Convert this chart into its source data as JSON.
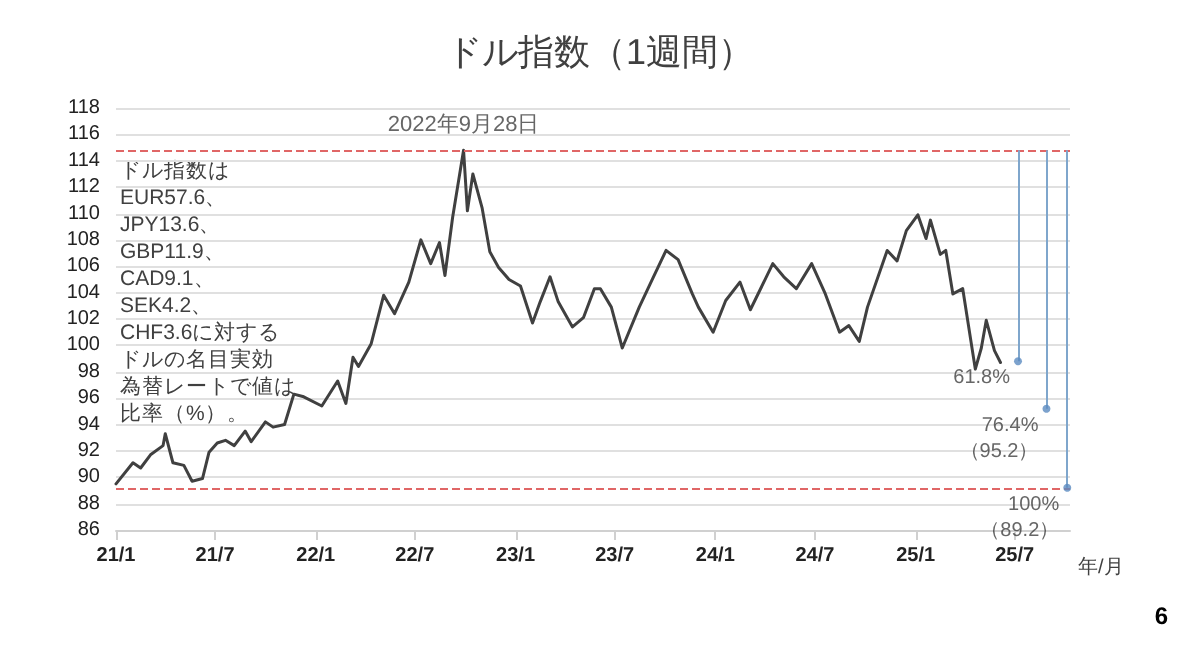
{
  "chart_data": {
    "type": "line",
    "title": "ドル指数（1週間）",
    "xlabel": "年/月",
    "x": [
      "2021-01-01",
      "2021-02-01",
      "2021-02-15",
      "2021-03-05",
      "2021-03-28",
      "2021-04-01",
      "2021-04-15",
      "2021-05-05",
      "2021-05-20",
      "2021-06-08",
      "2021-06-20",
      "2021-07-05",
      "2021-07-20",
      "2021-08-05",
      "2021-08-25",
      "2021-09-05",
      "2021-10-01",
      "2021-10-15",
      "2021-11-05",
      "2021-11-22",
      "2021-12-10",
      "2022-01-12",
      "2022-02-10",
      "2022-02-25",
      "2022-03-10",
      "2022-03-20",
      "2022-04-12",
      "2022-05-05",
      "2022-05-25",
      "2022-06-20",
      "2022-07-12",
      "2022-07-30",
      "2022-08-15",
      "2022-08-25",
      "2022-09-08",
      "2022-09-28",
      "2022-10-05",
      "2022-10-15",
      "2022-11-01",
      "2022-11-15",
      "2022-12-01",
      "2022-12-20",
      "2023-01-10",
      "2023-02-01",
      "2023-02-15",
      "2023-03-05",
      "2023-03-20",
      "2023-04-15",
      "2023-05-05",
      "2023-05-25",
      "2023-06-05",
      "2023-06-25",
      "2023-07-15",
      "2023-08-15",
      "2023-09-10",
      "2023-10-03",
      "2023-10-25",
      "2023-11-20",
      "2023-12-01",
      "2023-12-28",
      "2024-01-20",
      "2024-02-15",
      "2024-03-05",
      "2024-04-15",
      "2024-05-05",
      "2024-05-28",
      "2024-06-25",
      "2024-07-20",
      "2024-08-15",
      "2024-09-01",
      "2024-09-20",
      "2024-10-05",
      "2024-11-10",
      "2024-11-28",
      "2024-12-15",
      "2025-01-05",
      "2025-01-20",
      "2025-01-28",
      "2025-02-15",
      "2025-02-25",
      "2025-03-10",
      "2025-03-28",
      "2025-04-20",
      "2025-05-01",
      "2025-05-10",
      "2025-05-25",
      "2025-06-05"
    ],
    "series": [
      {
        "color": "#404040",
        "values": [
          89.5,
          91.1,
          90.7,
          91.7,
          92.4,
          93.3,
          91.1,
          90.9,
          89.7,
          89.9,
          91.9,
          92.6,
          92.8,
          92.4,
          93.5,
          92.7,
          94.2,
          93.8,
          94.0,
          96.3,
          96.1,
          95.4,
          97.3,
          95.6,
          99.1,
          98.4,
          100.1,
          103.8,
          102.4,
          104.8,
          108.0,
          106.2,
          107.8,
          105.3,
          109.7,
          114.8,
          110.2,
          113.0,
          110.4,
          107.1,
          105.9,
          105.0,
          104.5,
          101.7,
          103.3,
          105.2,
          103.3,
          101.4,
          102.1,
          104.3,
          104.3,
          102.9,
          99.8,
          102.9,
          105.2,
          107.2,
          106.5,
          103.9,
          102.9,
          101.0,
          103.4,
          104.8,
          102.7,
          106.2,
          105.2,
          104.3,
          106.2,
          103.9,
          101.0,
          101.5,
          100.3,
          102.9,
          107.2,
          106.4,
          108.7,
          109.9,
          108.1,
          109.5,
          106.9,
          107.2,
          103.9,
          104.3,
          98.2,
          99.8,
          101.9,
          99.6,
          98.7
        ]
      }
    ],
    "xlim": [
      "2021-01-01",
      "2025-10-10"
    ],
    "xticks": [
      {
        "value": "2021-01-01",
        "label": "21/1"
      },
      {
        "value": "2021-07-01",
        "label": "21/7"
      },
      {
        "value": "2022-01-01",
        "label": "22/1"
      },
      {
        "value": "2022-07-01",
        "label": "22/7"
      },
      {
        "value": "2023-01-01",
        "label": "23/1"
      },
      {
        "value": "2023-07-01",
        "label": "23/7"
      },
      {
        "value": "2024-01-01",
        "label": "24/1"
      },
      {
        "value": "2024-07-01",
        "label": "24/7"
      },
      {
        "value": "2025-01-01",
        "label": "25/1"
      },
      {
        "value": "2025-07-01",
        "label": "25/7"
      }
    ],
    "ylim": [
      86,
      118
    ],
    "yticks": [
      86,
      88,
      90,
      92,
      94,
      96,
      98,
      100,
      102,
      104,
      106,
      108,
      110,
      112,
      114,
      116,
      118
    ],
    "grid": "y",
    "marker": "none",
    "line_style": "solid",
    "ref_lines": [
      {
        "axis": "y",
        "value": 114.8,
        "color": "#e06666",
        "line_style": "dashed"
      },
      {
        "axis": "y",
        "value": 89.2,
        "color": "#e06666",
        "line_style": "dashed"
      }
    ],
    "annotations": [
      "ドル指数は",
      "EUR57.6、",
      "JPY13.6、",
      "GBP11.9、",
      "CAD9.1、",
      "SEK4.2、",
      "CHF3.6に対する",
      "ドルの名目実効",
      "為替レートで値は",
      "比率（%）。",
      "6",
      {
        "text": "2022年9月28日",
        "x": "2022-09-28",
        "y": 114.8
      },
      {
        "text": "61.8%",
        "x": "2025-07-07",
        "y": 98.8
      },
      {
        "text": "76.4%\n（95.2）",
        "x": "2025-08-28",
        "y": 95.2
      },
      {
        "text": "100%\n（89.2）",
        "x": "2025-10-05",
        "y": 89.2
      }
    ]
  }
}
